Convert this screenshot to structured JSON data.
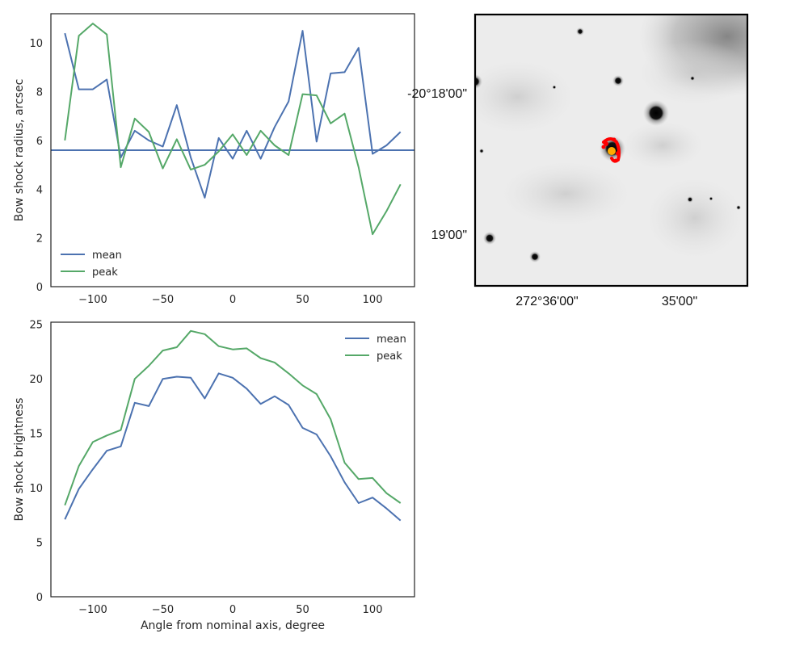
{
  "chart_data": [
    {
      "type": "line",
      "xlabel": "",
      "ylabel": "Bow shock radius, arcsec",
      "xlim": [
        -130,
        130
      ],
      "ylim": [
        0,
        11.2
      ],
      "xticks": [
        -100,
        -50,
        0,
        50,
        100
      ],
      "yticks": [
        0,
        2,
        4,
        6,
        8,
        10
      ],
      "grid": false,
      "legend_position": "lower-left",
      "x": [
        -120,
        -110,
        -100,
        -90,
        -80,
        -70,
        -60,
        -50,
        -40,
        -30,
        -20,
        -10,
        0,
        10,
        20,
        30,
        40,
        50,
        60,
        70,
        80,
        90,
        100,
        110,
        120
      ],
      "series": [
        {
          "name": "mean",
          "color": "#4C72B0",
          "values": [
            10.4,
            8.1,
            8.1,
            8.5,
            5.3,
            6.4,
            6.0,
            5.75,
            7.45,
            5.3,
            3.65,
            6.1,
            5.25,
            6.4,
            5.25,
            6.55,
            7.6,
            10.5,
            5.95,
            8.75,
            8.8,
            9.8,
            5.45,
            5.8,
            6.35
          ]
        },
        {
          "name": "peak",
          "color": "#55A868",
          "values": [
            6.0,
            10.3,
            10.8,
            10.35,
            4.9,
            6.9,
            6.35,
            4.85,
            6.05,
            4.8,
            5.0,
            5.55,
            6.25,
            5.4,
            6.4,
            5.8,
            5.4,
            7.9,
            7.85,
            6.7,
            7.1,
            4.9,
            2.15,
            3.1,
            4.2
          ]
        }
      ],
      "reference_line": {
        "y": 5.6,
        "color": "#4C72B0"
      }
    },
    {
      "type": "line",
      "xlabel": "Angle from nominal axis, degree",
      "ylabel": "Bow shock brightness",
      "xlim": [
        -130,
        130
      ],
      "ylim": [
        0,
        25.2
      ],
      "xticks": [
        -100,
        -50,
        0,
        50,
        100
      ],
      "yticks": [
        0,
        5,
        10,
        15,
        20,
        25
      ],
      "grid": false,
      "legend_position": "upper-right",
      "x": [
        -120,
        -110,
        -100,
        -90,
        -80,
        -70,
        -60,
        -50,
        -40,
        -30,
        -20,
        -10,
        0,
        10,
        20,
        30,
        40,
        50,
        60,
        70,
        80,
        90,
        100,
        110,
        120
      ],
      "series": [
        {
          "name": "mean",
          "color": "#4C72B0",
          "values": [
            7.1,
            9.9,
            11.7,
            13.4,
            13.8,
            17.8,
            17.5,
            20.0,
            20.2,
            20.1,
            18.2,
            20.5,
            20.1,
            19.1,
            17.7,
            18.4,
            17.6,
            15.5,
            14.9,
            12.9,
            10.5,
            8.6,
            9.1,
            8.1,
            7.0
          ]
        },
        {
          "name": "peak",
          "color": "#55A868",
          "values": [
            8.4,
            12.0,
            14.2,
            14.8,
            15.3,
            20.0,
            21.2,
            22.6,
            22.9,
            24.4,
            24.1,
            23.0,
            22.7,
            22.8,
            21.9,
            21.5,
            20.5,
            19.4,
            18.6,
            16.3,
            12.3,
            10.8,
            10.9,
            9.5,
            8.6
          ]
        }
      ]
    }
  ],
  "sky_image": {
    "ra_ticks": [
      "272°36'00\"",
      "35'00\""
    ],
    "dec_ticks": [
      "-20°18'00\"",
      "19'00\""
    ],
    "background": "#ececec",
    "marker_colors": [
      "#ff0000",
      "#ffaa00"
    ]
  }
}
